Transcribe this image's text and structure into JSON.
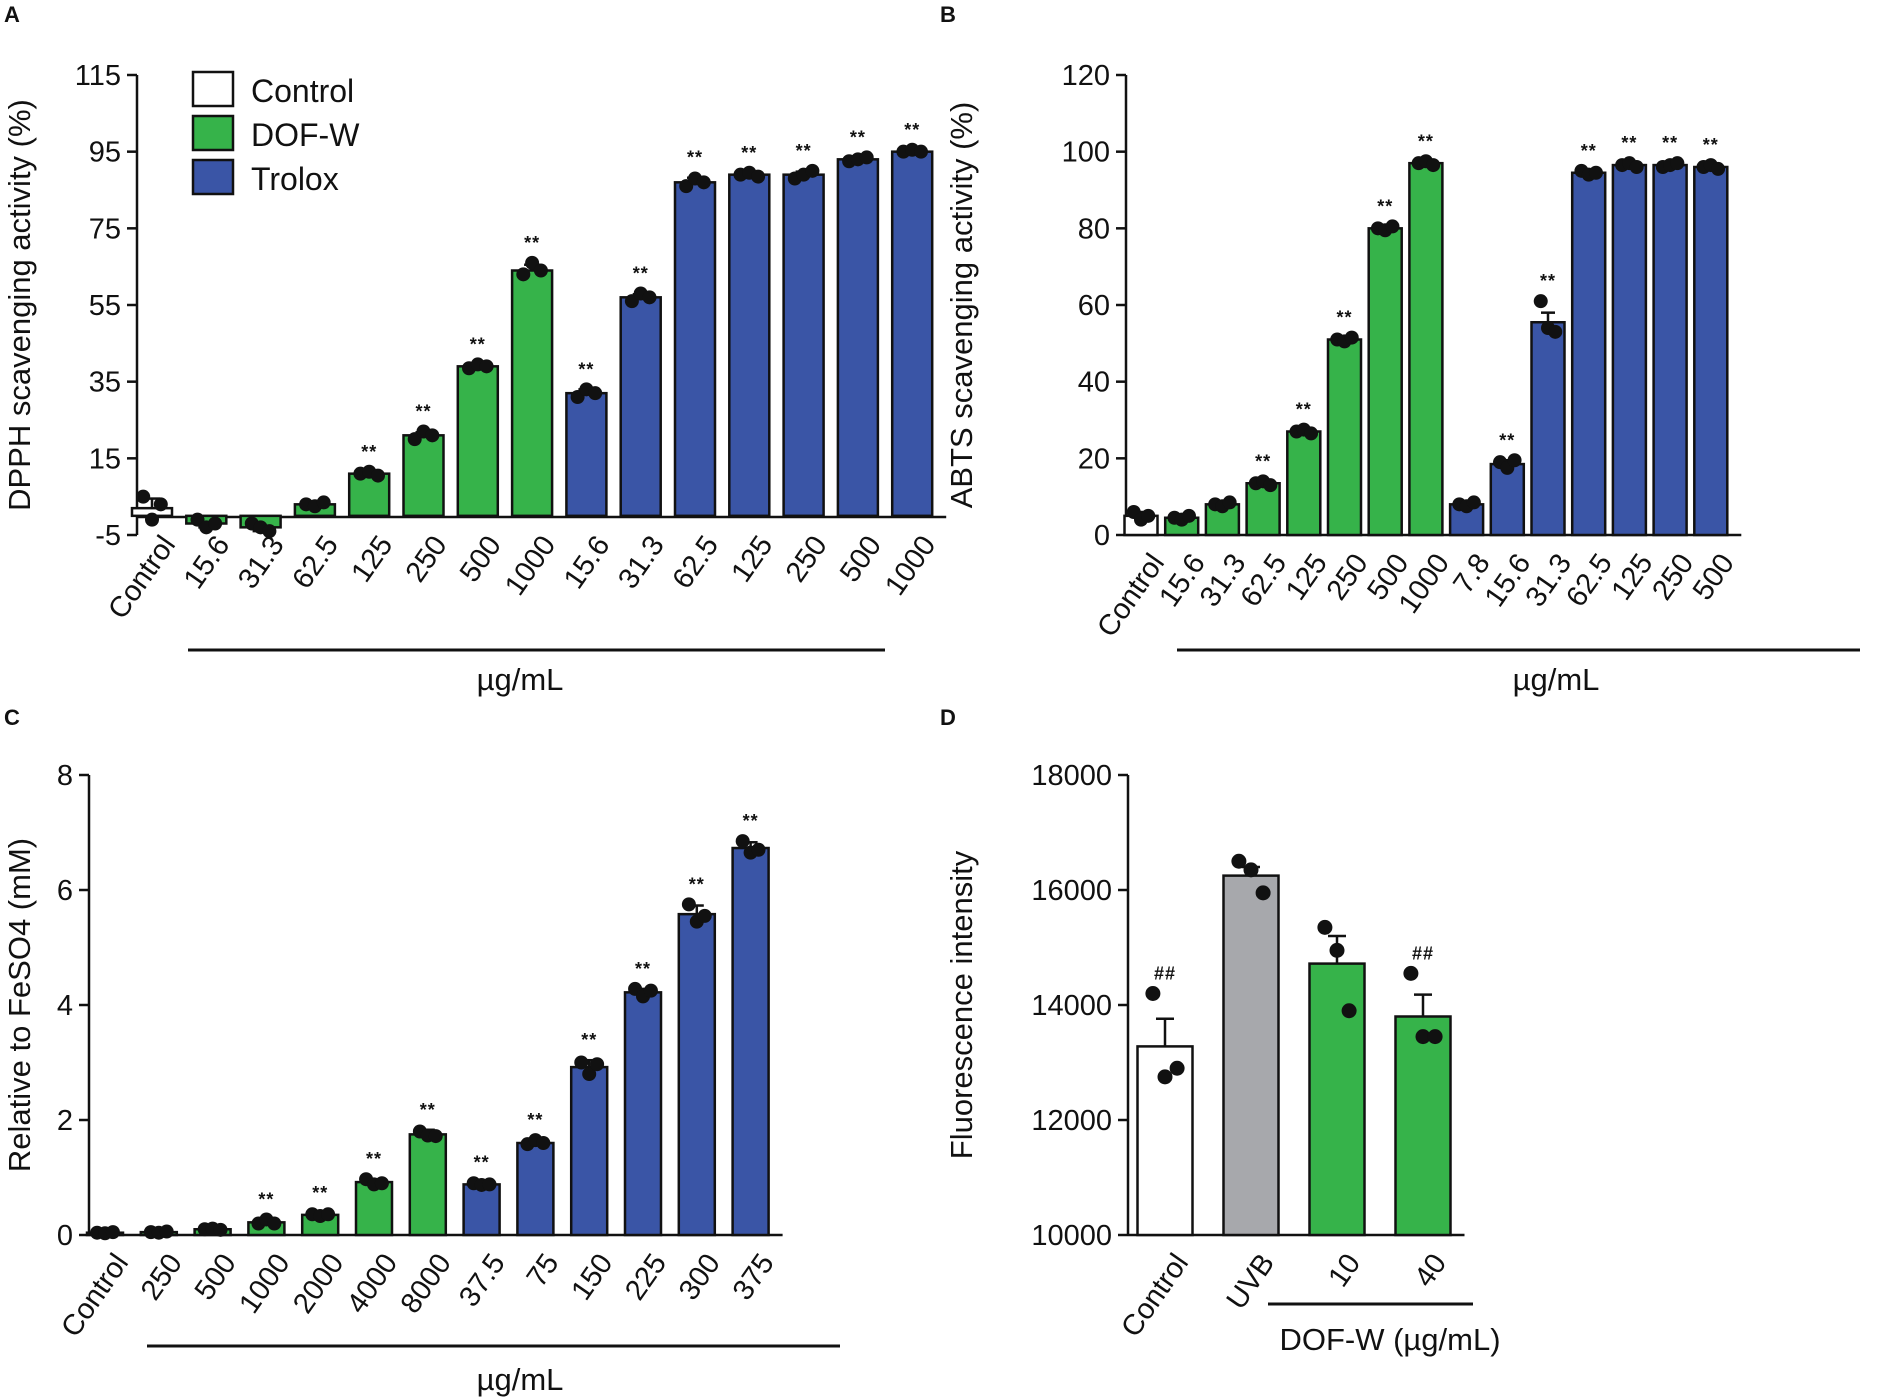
{
  "colors": {
    "Control": "#ffffff",
    "DOF-W": "#36b34a",
    "Trolox": "#3a55a6",
    "UVB": "#a7a8ac",
    "edge": "#111111",
    "dot": "#111111"
  },
  "chart_data": [
    {
      "panel": "A",
      "type": "bar",
      "title": "",
      "ylabel": "DPPH scavenging activity (%)",
      "xlabel": "µg/mL",
      "ylim": [
        -5,
        115
      ],
      "yticks": [
        -5,
        15,
        35,
        55,
        75,
        95,
        115
      ],
      "baseline": 0,
      "legend": [
        {
          "label": "Control",
          "color": "#ffffff"
        },
        {
          "label": "DOF-W",
          "color": "#36b34a"
        },
        {
          "label": "Trolox",
          "color": "#3a55a6"
        }
      ],
      "legend_position": "top-left",
      "group_line_from": "15.6",
      "categories": [
        "Control",
        "15.6",
        "31.3",
        "62.5",
        "125",
        "250",
        "500",
        "1000",
        "15.6",
        "31.3",
        "62.5",
        "125",
        "250",
        "500",
        "1000"
      ],
      "groups": [
        "Control",
        "DOF-W",
        "DOF-W",
        "DOF-W",
        "DOF-W",
        "DOF-W",
        "DOF-W",
        "DOF-W",
        "Trolox",
        "Trolox",
        "Trolox",
        "Trolox",
        "Trolox",
        "Trolox",
        "Trolox"
      ],
      "values": [
        2,
        -2,
        -3,
        3,
        11,
        21,
        39,
        64,
        32,
        57,
        87,
        89,
        89,
        93,
        95
      ],
      "errors": [
        2.5,
        1,
        1,
        0.6,
        0.5,
        0.8,
        0.5,
        1.5,
        1,
        0.8,
        1.2,
        0.4,
        0.8,
        0.5,
        0.3
      ],
      "points": [
        [
          5,
          -1,
          3
        ],
        [
          -1,
          -3,
          -2
        ],
        [
          -2,
          -3,
          -4
        ],
        [
          3,
          2.5,
          3.5
        ],
        [
          11,
          11.5,
          10.5
        ],
        [
          20,
          22,
          21
        ],
        [
          38.5,
          39.5,
          39
        ],
        [
          63,
          66,
          64
        ],
        [
          31,
          33,
          32
        ],
        [
          56,
          58,
          57
        ],
        [
          86,
          88,
          87
        ],
        [
          89,
          89.5,
          88.5
        ],
        [
          88,
          89,
          90
        ],
        [
          92.5,
          93,
          93.5
        ],
        [
          95,
          95.5,
          95
        ]
      ],
      "significance": [
        "",
        "",
        "",
        "",
        "**",
        "**",
        "**",
        "**",
        "**",
        "**",
        "**",
        "**",
        "**",
        "**",
        "**"
      ]
    },
    {
      "panel": "B",
      "type": "bar",
      "title": "",
      "ylabel": "ABTS scavenging activity (%)",
      "xlabel": "µg/mL",
      "ylim": [
        0,
        120
      ],
      "yticks": [
        0,
        20,
        40,
        60,
        80,
        100,
        120
      ],
      "baseline": 0,
      "group_line_from": "15.6",
      "categories": [
        "Control",
        "15.6",
        "31.3",
        "62.5",
        "125",
        "250",
        "500",
        "1000",
        "7.8",
        "15.6",
        "31.3",
        "62.5",
        "125",
        "250",
        "500"
      ],
      "groups": [
        "Control",
        "DOF-W",
        "DOF-W",
        "DOF-W",
        "DOF-W",
        "DOF-W",
        "DOF-W",
        "DOF-W",
        "Trolox",
        "Trolox",
        "Trolox",
        "Trolox",
        "Trolox",
        "Trolox",
        "Trolox"
      ],
      "values": [
        5,
        4.5,
        8,
        13.5,
        27,
        51,
        80,
        97,
        8,
        18.5,
        55.5,
        94.5,
        96.5,
        96.5,
        96
      ],
      "errors": [
        1,
        0.3,
        0.3,
        0.3,
        0.3,
        0.3,
        0.2,
        0.2,
        0.4,
        1,
        2.5,
        0.5,
        0.3,
        0.2,
        0.2
      ],
      "points": [
        [
          6,
          4,
          5
        ],
        [
          4.5,
          4,
          5
        ],
        [
          8,
          7.5,
          8.5
        ],
        [
          13.5,
          14,
          13
        ],
        [
          27,
          27.5,
          26.5
        ],
        [
          51,
          50.5,
          51.5
        ],
        [
          80,
          79.5,
          80.5
        ],
        [
          97,
          97.5,
          96.5
        ],
        [
          8,
          7.5,
          8.5
        ],
        [
          19,
          17.5,
          19.5
        ],
        [
          61,
          54,
          53
        ],
        [
          95,
          94,
          94.5
        ],
        [
          96.5,
          97,
          96
        ],
        [
          96,
          96.5,
          97
        ],
        [
          96,
          96.5,
          95.5
        ]
      ],
      "significance": [
        "",
        "",
        "",
        "**",
        "**",
        "**",
        "**",
        "**",
        "",
        "**",
        "**",
        "**",
        "**",
        "**",
        "**"
      ]
    },
    {
      "panel": "C",
      "type": "bar",
      "title": "",
      "ylabel": "Relative to FeSO4 (mM)",
      "xlabel": "µg/mL",
      "ylim": [
        0,
        8
      ],
      "yticks": [
        0,
        2,
        4,
        6,
        8
      ],
      "baseline": 0,
      "group_line_from": "250",
      "categories": [
        "Control",
        "250",
        "500",
        "1000",
        "2000",
        "4000",
        "8000",
        "37.5",
        "75",
        "150",
        "225",
        "300",
        "375"
      ],
      "groups": [
        "Control",
        "DOF-W",
        "DOF-W",
        "DOF-W",
        "DOF-W",
        "DOF-W",
        "DOF-W",
        "Trolox",
        "Trolox",
        "Trolox",
        "Trolox",
        "Trolox",
        "Trolox"
      ],
      "values": [
        0.04,
        0.05,
        0.1,
        0.22,
        0.35,
        0.92,
        1.75,
        0.88,
        1.6,
        2.92,
        4.22,
        5.58,
        6.73
      ],
      "errors": [
        0.01,
        0.01,
        0.01,
        0.03,
        0.03,
        0.05,
        0.08,
        0.03,
        0.04,
        0.12,
        0.06,
        0.15,
        0.1
      ],
      "points": [
        [
          0.04,
          0.03,
          0.05
        ],
        [
          0.05,
          0.04,
          0.06
        ],
        [
          0.1,
          0.11,
          0.09
        ],
        [
          0.2,
          0.27,
          0.2
        ],
        [
          0.36,
          0.33,
          0.36
        ],
        [
          0.97,
          0.88,
          0.9
        ],
        [
          1.8,
          1.73,
          1.72
        ],
        [
          0.9,
          0.87,
          0.88
        ],
        [
          1.58,
          1.65,
          1.6
        ],
        [
          3.0,
          2.8,
          2.97
        ],
        [
          4.28,
          4.15,
          4.25
        ],
        [
          5.75,
          5.45,
          5.55
        ],
        [
          6.85,
          6.65,
          6.7
        ]
      ],
      "significance": [
        "",
        "",
        "",
        "**",
        "**",
        "**",
        "**",
        "**",
        "**",
        "**",
        "**",
        "**",
        "**"
      ]
    },
    {
      "panel": "D",
      "type": "bar",
      "title": "",
      "ylabel": "Fluorescence intensity",
      "xlabel": "DOF-W (µg/mL)",
      "ylim": [
        10000,
        18000
      ],
      "yticks": [
        10000,
        12000,
        14000,
        16000,
        18000
      ],
      "baseline": 10000,
      "group_line_from": "10",
      "categories": [
        "Control",
        "UVB",
        "10",
        "40"
      ],
      "groups": [
        "Control",
        "UVB",
        "DOF-W",
        "DOF-W"
      ],
      "values": [
        13280,
        16250,
        14720,
        13800
      ],
      "errors": [
        480,
        150,
        480,
        380
      ],
      "points": [
        [
          14200,
          12750,
          12900
        ],
        [
          16500,
          16350,
          15950
        ],
        [
          15350,
          14950,
          13900
        ],
        [
          14550,
          13450,
          13450
        ]
      ],
      "significance": [
        "##",
        "",
        "",
        "##"
      ]
    }
  ]
}
